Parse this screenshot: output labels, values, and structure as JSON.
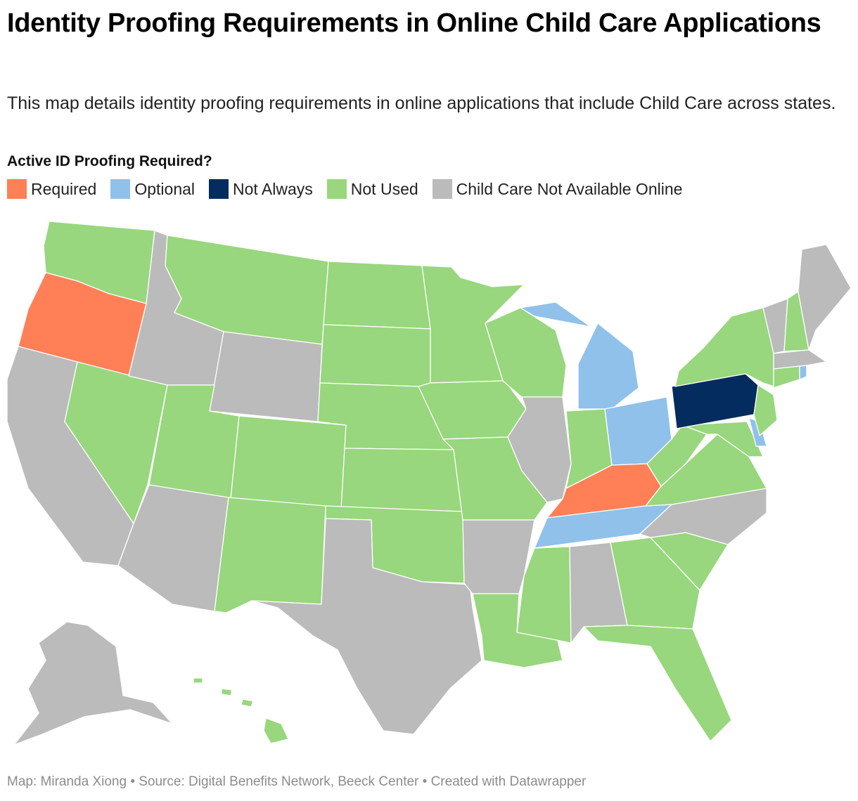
{
  "title": "Identity Proofing Requirements in Online Child Care Applications",
  "subtitle": "This map details identity proofing requirements in online applications that include Child Care across states.",
  "legend": {
    "title": "Active ID Proofing Required?",
    "items": [
      {
        "key": "required",
        "label": "Required",
        "color": "#ff7f57"
      },
      {
        "key": "optional",
        "label": "Optional",
        "color": "#8fc1ea"
      },
      {
        "key": "not_always",
        "label": "Not Always",
        "color": "#042c5e"
      },
      {
        "key": "not_used",
        "label": "Not Used",
        "color": "#98d77d"
      },
      {
        "key": "na",
        "label": "Child Care Not Available Online",
        "color": "#bbbbbb"
      }
    ]
  },
  "states": [
    {
      "name": "Washington",
      "category": "not_used"
    },
    {
      "name": "Oregon",
      "category": "required"
    },
    {
      "name": "California",
      "category": "na"
    },
    {
      "name": "Nevada",
      "category": "not_used"
    },
    {
      "name": "Idaho",
      "category": "na"
    },
    {
      "name": "Montana",
      "category": "not_used"
    },
    {
      "name": "Wyoming",
      "category": "na"
    },
    {
      "name": "Utah",
      "category": "not_used"
    },
    {
      "name": "Arizona",
      "category": "na"
    },
    {
      "name": "Colorado",
      "category": "not_used"
    },
    {
      "name": "New Mexico",
      "category": "not_used"
    },
    {
      "name": "North Dakota",
      "category": "not_used"
    },
    {
      "name": "South Dakota",
      "category": "not_used"
    },
    {
      "name": "Nebraska",
      "category": "not_used"
    },
    {
      "name": "Kansas",
      "category": "not_used"
    },
    {
      "name": "Oklahoma",
      "category": "not_used"
    },
    {
      "name": "Texas",
      "category": "na"
    },
    {
      "name": "Minnesota",
      "category": "not_used"
    },
    {
      "name": "Iowa",
      "category": "not_used"
    },
    {
      "name": "Missouri",
      "category": "not_used"
    },
    {
      "name": "Arkansas",
      "category": "na"
    },
    {
      "name": "Louisiana",
      "category": "not_used"
    },
    {
      "name": "Wisconsin",
      "category": "not_used"
    },
    {
      "name": "Illinois",
      "category": "na"
    },
    {
      "name": "Michigan",
      "category": "optional"
    },
    {
      "name": "Indiana",
      "category": "not_used"
    },
    {
      "name": "Ohio",
      "category": "optional"
    },
    {
      "name": "Kentucky",
      "category": "required"
    },
    {
      "name": "Tennessee",
      "category": "optional"
    },
    {
      "name": "Mississippi",
      "category": "not_used"
    },
    {
      "name": "Alabama",
      "category": "na"
    },
    {
      "name": "Georgia",
      "category": "not_used"
    },
    {
      "name": "Florida",
      "category": "not_used"
    },
    {
      "name": "South Carolina",
      "category": "not_used"
    },
    {
      "name": "North Carolina",
      "category": "na"
    },
    {
      "name": "Virginia",
      "category": "not_used"
    },
    {
      "name": "West Virginia",
      "category": "not_used"
    },
    {
      "name": "Maryland",
      "category": "not_used"
    },
    {
      "name": "Delaware",
      "category": "optional"
    },
    {
      "name": "Pennsylvania",
      "category": "not_always"
    },
    {
      "name": "New Jersey",
      "category": "not_used"
    },
    {
      "name": "New York",
      "category": "not_used"
    },
    {
      "name": "Connecticut",
      "category": "not_used"
    },
    {
      "name": "Rhode Island",
      "category": "optional"
    },
    {
      "name": "Massachusetts",
      "category": "na"
    },
    {
      "name": "Vermont",
      "category": "na"
    },
    {
      "name": "New Hampshire",
      "category": "not_used"
    },
    {
      "name": "Maine",
      "category": "na"
    },
    {
      "name": "Alaska",
      "category": "na"
    },
    {
      "name": "Hawaii",
      "category": "not_used"
    }
  ],
  "footer": "Map: Miranda Xiong • Source: Digital Benefits Network, Beeck Center • Created with Datawrapper"
}
